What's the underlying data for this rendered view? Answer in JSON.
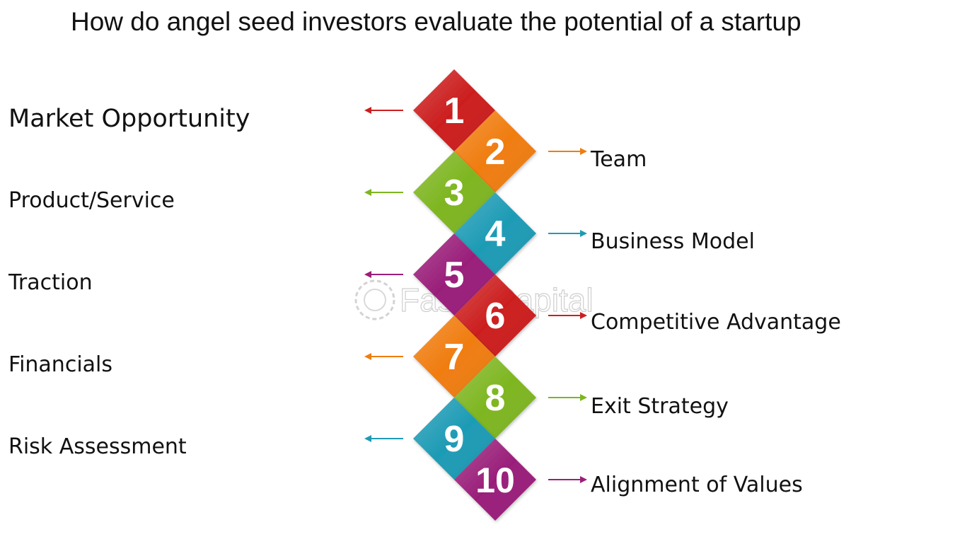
{
  "title": "How do angel seed investors evaluate the potential of a startup",
  "watermark": "FasterCapital",
  "colors": {
    "red": "#cc1f1f",
    "orange": "#f07d10",
    "green": "#7eb621",
    "blue": "#1e9bb5",
    "purple": "#9a1f7a"
  },
  "steps": [
    {
      "number": "1",
      "label": "Market Opportunity",
      "side": "left",
      "color": "red"
    },
    {
      "number": "2",
      "label": "Team",
      "side": "right",
      "color": "orange"
    },
    {
      "number": "3",
      "label": "Product/Service",
      "side": "left",
      "color": "green"
    },
    {
      "number": "4",
      "label": "Business Model",
      "side": "right",
      "color": "blue"
    },
    {
      "number": "5",
      "label": "Traction",
      "side": "left",
      "color": "purple"
    },
    {
      "number": "6",
      "label": "Competitive Advantage",
      "side": "right",
      "color": "red"
    },
    {
      "number": "7",
      "label": "Financials",
      "side": "left",
      "color": "orange"
    },
    {
      "number": "8",
      "label": "Exit Strategy",
      "side": "right",
      "color": "green"
    },
    {
      "number": "9",
      "label": "Risk Assessment",
      "side": "left",
      "color": "blue"
    },
    {
      "number": "10",
      "label": "Alignment of Values",
      "side": "right",
      "color": "purple"
    }
  ]
}
